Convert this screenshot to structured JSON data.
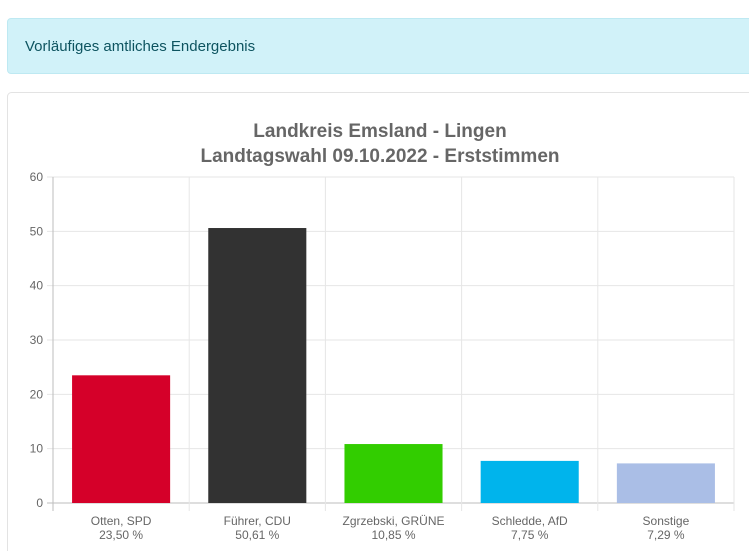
{
  "header": {
    "alert_text": "Vorläufiges amtliches Endergebnis"
  },
  "chart_data": {
    "type": "bar",
    "title": [
      "Landkreis Emsland - Lingen",
      "Landtagswahl 09.10.2022  - Erststimmen"
    ],
    "categories": [
      "Otten, SPD",
      "Führer, CDU",
      "Zgrzebski, GRÜNE",
      "Schledde, AfD",
      "Sonstige"
    ],
    "values": [
      23.5,
      50.61,
      10.85,
      7.75,
      7.29
    ],
    "value_labels": [
      "23,50 %",
      "50,61 %",
      "10,85 %",
      "7,75 %",
      "7,29 %"
    ],
    "colors": [
      "#d50029",
      "#323232",
      "#32cd00",
      "#00b4ec",
      "#aabee6"
    ],
    "ylim": [
      0,
      60
    ],
    "yticks": [
      0,
      10,
      20,
      30,
      40,
      50,
      60
    ],
    "grid": true,
    "xlabel": "",
    "ylabel": ""
  }
}
